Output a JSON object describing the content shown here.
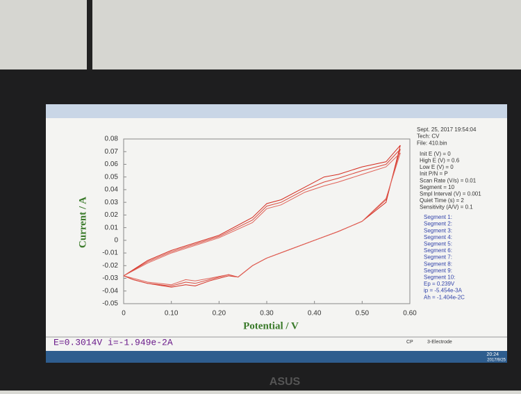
{
  "chart_data": {
    "type": "line",
    "x_label": "Potential / V",
    "y_label": "Current / A",
    "x": [
      0,
      0.02,
      0.05,
      0.1,
      0.13,
      0.15,
      0.18,
      0.22,
      0.24,
      0.27,
      0.3,
      0.35,
      0.4,
      0.45,
      0.5,
      0.55,
      0.58,
      0.55,
      0.5,
      0.45,
      0.42,
      0.38,
      0.33,
      0.3,
      0.27,
      0.2,
      0.1,
      0.05,
      0
    ],
    "series": [
      {
        "color": "#d42a1e",
        "values": [
          -0.028,
          -0.031,
          -0.034,
          -0.037,
          -0.035,
          -0.036,
          -0.032,
          -0.028,
          -0.029,
          -0.02,
          -0.014,
          -0.007,
          0.0,
          0.007,
          0.015,
          0.03,
          0.075,
          0.062,
          0.058,
          0.052,
          0.05,
          0.042,
          0.032,
          0.029,
          0.018,
          0.004,
          -0.008,
          -0.016,
          -0.028
        ]
      },
      {
        "color": "#d9463a",
        "values": [
          -0.028,
          -0.031,
          -0.034,
          -0.036,
          -0.033,
          -0.034,
          -0.031,
          -0.027,
          -0.029,
          -0.02,
          -0.014,
          -0.007,
          0.0,
          0.007,
          0.015,
          0.032,
          0.072,
          0.06,
          0.055,
          0.049,
          0.046,
          0.04,
          0.03,
          0.027,
          0.016,
          0.003,
          -0.009,
          -0.017,
          -0.028
        ]
      },
      {
        "color": "#e06258",
        "values": [
          -0.028,
          -0.03,
          -0.033,
          -0.035,
          -0.031,
          -0.032,
          -0.03,
          -0.027,
          -0.029,
          -0.02,
          -0.014,
          -0.007,
          0.0,
          0.007,
          0.015,
          0.033,
          0.069,
          0.058,
          0.052,
          0.046,
          0.043,
          0.038,
          0.028,
          0.025,
          0.014,
          0.002,
          -0.01,
          -0.018,
          -0.028
        ]
      }
    ],
    "xlim": [
      0,
      0.6
    ],
    "xticks": [
      0,
      {
        "value": 0.1,
        "label": "0.10"
      },
      {
        "value": 0.2,
        "label": "0.20"
      },
      {
        "value": 0.3,
        "label": "0.30"
      },
      {
        "value": 0.4,
        "label": "0.40"
      },
      {
        "value": 0.5,
        "label": "0.50"
      },
      {
        "value": 0.6,
        "label": "0.60"
      }
    ],
    "ylim": [
      -0.05,
      0.08
    ],
    "yticks": [
      0.08,
      0.07,
      0.06,
      0.05,
      0.04,
      0.03,
      0.02,
      0.01,
      0,
      -0.01,
      -0.02,
      -0.03,
      -0.04,
      -0.05
    ]
  },
  "info": [
    "Sept. 25, 2017   19:54:04",
    "Tech: CV",
    "File: 410.bin",
    "Init E (V) = 0",
    "High E (V) = 0.6",
    "Low E (V) = 0",
    "Init P/N = P",
    "Scan Rate (V/s) = 0.01",
    "Segment = 10",
    "Smpl Interval (V) = 0.001",
    "Quiet Time (s) = 2",
    "Sensitivity (A/V) = 0.1"
  ],
  "segments": [
    "Segment 1:",
    "Segment 2:",
    "Segment 3:",
    "Segment 4:",
    "Segment 5:",
    "Segment 6:",
    "Segment 7:",
    "Segment 8:",
    "Segment 9:",
    "Segment 10:",
    "Ep = 0.239V",
    "ip = -5.454e-3A",
    "Ah = -1.404e-2C"
  ],
  "status": "E=0.3014V  i=-1.949e-2A",
  "statusbar": [
    "CP",
    "3-Electrode"
  ],
  "clock": [
    "20:24",
    "2017/9/25"
  ],
  "brand": "ASUS"
}
